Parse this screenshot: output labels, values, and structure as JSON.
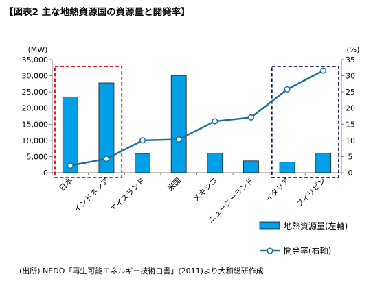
{
  "title": "【図表2 主な地熱資源国の資源量と開発率】",
  "source": "(出所) NEDO「再生可能エネルギー技術白書」(2011)より大和総研作成",
  "colors": {
    "bar": "#00a0e9",
    "bar_stroke": "#1a1a1a",
    "line": "#1a7097",
    "highlight_left": "#e60012",
    "highlight_right": "#0b1f4d"
  },
  "chart_data": {
    "type": "bar",
    "categories": [
      "日本",
      "インドネシア",
      "アイスランド",
      "米国",
      "メキシコ",
      "ニュージーランド",
      "イタリア",
      "フィリピン"
    ],
    "series": [
      {
        "name": "地熱資源量(左軸)",
        "type": "bar",
        "axis": "left",
        "values": [
          23470,
          27790,
          5800,
          30000,
          6000,
          3650,
          3270,
          6000
        ]
      },
      {
        "name": "開発率(右軸)",
        "type": "line",
        "axis": "right",
        "values": [
          2.2,
          4.3,
          10.0,
          10.3,
          15.9,
          17.1,
          25.8,
          31.6
        ]
      }
    ],
    "y_left": {
      "unit": "(MW)",
      "min": 0,
      "max": 35000,
      "ticks": [
        "0",
        "5,000",
        "10,000",
        "15,000",
        "20,000",
        "25,000",
        "30,000",
        "35,000"
      ]
    },
    "y_right": {
      "unit": "(%)",
      "min": 0,
      "max": 35,
      "ticks": [
        "0",
        "5",
        "10",
        "15",
        "20",
        "25",
        "30",
        "35"
      ]
    },
    "grid": false,
    "legend": "bottom-right",
    "highlight_groups": [
      {
        "from": 0,
        "to": 1
      },
      {
        "from": 6,
        "to": 7
      }
    ]
  }
}
